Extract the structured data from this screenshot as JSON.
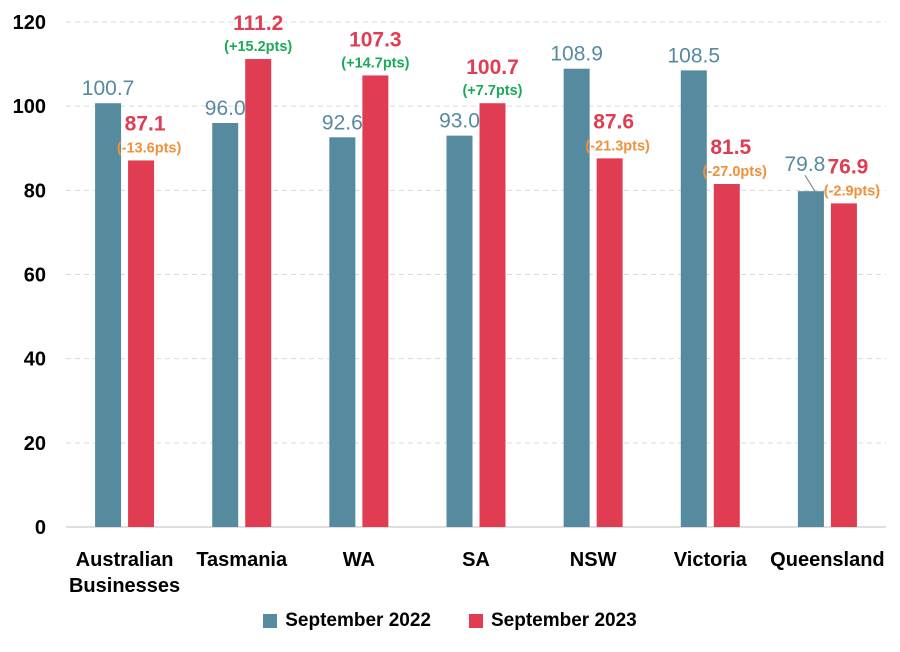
{
  "colors": {
    "sept2022": "#568A9E",
    "sept2023": "#E03C52",
    "positive_change": "#1BAA5A",
    "negative_change": "#F0913A",
    "axis": "#000000",
    "grid": "#D9D9D9"
  },
  "chart_data": {
    "type": "bar",
    "title": "",
    "xlabel": "",
    "ylabel": "",
    "ylim": [
      0,
      120
    ],
    "yticks": [
      "0",
      "20",
      "40",
      "60",
      "80",
      "100",
      "120"
    ],
    "grid": true,
    "legend_position": "bottom",
    "categories": [
      [
        "Australian",
        "Businesses"
      ],
      [
        "Tasmania"
      ],
      [
        "WA"
      ],
      [
        "SA"
      ],
      [
        "NSW"
      ],
      [
        "Victoria"
      ],
      [
        "Queensland"
      ]
    ],
    "series": [
      {
        "name": "September 2022",
        "values": [
          100.7,
          96.0,
          92.6,
          93.0,
          108.9,
          108.5,
          79.8
        ],
        "labels": [
          "100.7",
          "96.0",
          "92.6",
          "93.0",
          "108.9",
          "108.5",
          "79.8"
        ]
      },
      {
        "name": "September 2023",
        "values": [
          87.1,
          111.2,
          107.3,
          100.7,
          87.6,
          81.5,
          76.9
        ],
        "labels": [
          "87.1",
          "111.2",
          "107.3",
          "100.7",
          "87.6",
          "81.5",
          "76.9"
        ]
      }
    ],
    "changes": [
      "(-13.6pts)",
      "(+15.2pts)",
      "(+14.7pts)",
      "(+7.7pts)",
      "(-21.3pts)",
      "(-27.0pts)",
      "(-2.9pts)"
    ],
    "change_direction": [
      "negative",
      "positive",
      "positive",
      "positive",
      "negative",
      "negative",
      "negative"
    ]
  },
  "legend": {
    "items": [
      "September 2022",
      "September 2023"
    ]
  }
}
